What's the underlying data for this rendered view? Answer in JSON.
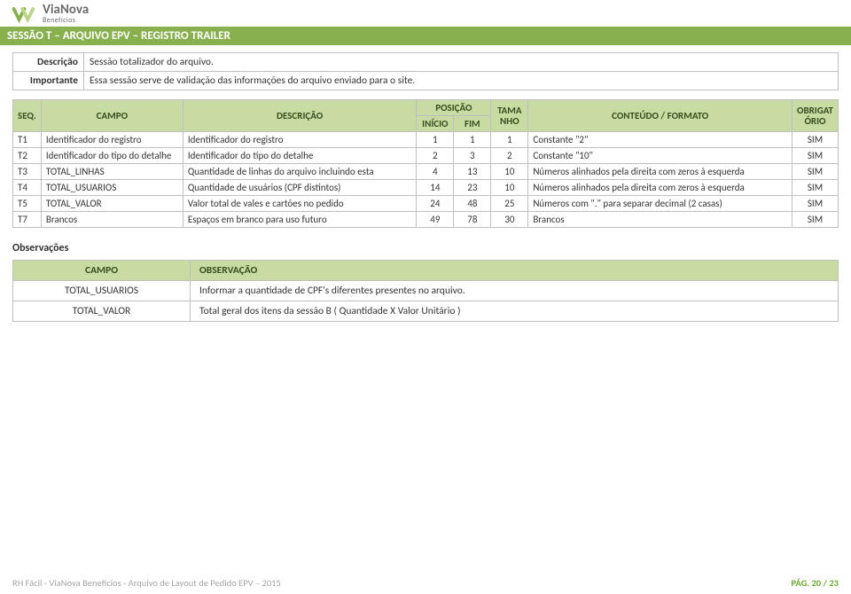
{
  "logo": {
    "name": "ViaNova",
    "sub": "Benefícios"
  },
  "session_title": "SESSÃO T – ARQUIVO EPV – REGISTRO TRAILER",
  "meta": {
    "rows": [
      {
        "label": "Descrição",
        "value": "Sessão totalizador do arquivo."
      },
      {
        "label": "Importante",
        "value": "Essa sessão serve de validação das informações do arquivo enviado para o site."
      }
    ]
  },
  "table": {
    "headers": {
      "seq": "SEQ.",
      "campo": "CAMPO",
      "descricao": "DESCRIÇÃO",
      "posicao": "POSIÇÃO",
      "inicio": "INÍCIO",
      "fim": "FIM",
      "tamanho": "TAMANHO",
      "tamanho_short": "TAMA NHO",
      "conteudo": "CONTEÚDO / FORMATO",
      "obrigat": "OBRIGAT ÓRIO"
    },
    "rows": [
      {
        "seq": "T1",
        "campo": "Identificador do registro",
        "desc": "Identificador do registro",
        "inicio": "1",
        "fim": "1",
        "tam": "1",
        "conteudo": "Constante \"2\"",
        "obrig": "SIM"
      },
      {
        "seq": "T2",
        "campo": "Identificador do tipo do detalhe",
        "desc": "Identificador do tipo do detalhe",
        "inicio": "2",
        "fim": "3",
        "tam": "2",
        "conteudo": "Constante \"10\"",
        "obrig": "SIM"
      },
      {
        "seq": "T3",
        "campo": "TOTAL_LINHAS",
        "desc": "Quantidade de linhas do arquivo incluindo esta",
        "inicio": "4",
        "fim": "13",
        "tam": "10",
        "conteudo": "Números alinhados pela direita com zeros à esquerda",
        "obrig": "SIM"
      },
      {
        "seq": "T4",
        "campo": "TOTAL_USUARIOS",
        "desc": "Quantidade de usuários (CPF distintos)",
        "inicio": "14",
        "fim": "23",
        "tam": "10",
        "conteudo": "Números alinhados pela direita com zeros à esquerda",
        "obrig": "SIM"
      },
      {
        "seq": "T5",
        "campo": "TOTAL_VALOR",
        "desc": "Valor total de vales e cartões no pedido",
        "inicio": "24",
        "fim": "48",
        "tam": "25",
        "conteudo": "Números com \".\" para separar decimal (2 casas)",
        "obrig": "SIM"
      },
      {
        "seq": "T7",
        "campo": "Brancos",
        "desc": "Espaços em branco para uso futuro",
        "inicio": "49",
        "fim": "78",
        "tam": "30",
        "conteudo": "Brancos",
        "obrig": "SIM"
      }
    ]
  },
  "obs": {
    "heading": "Observações",
    "headers": {
      "campo": "CAMPO",
      "observacao": "OBSERVAÇÃO"
    },
    "rows": [
      {
        "campo": "TOTAL_USUARIOS",
        "obs": "Informar a quantidade de CPF's diferentes presentes no arquivo."
      },
      {
        "campo": "TOTAL_VALOR",
        "obs": "Total geral dos itens da sessão B ( Quantidade X Valor Unitário )"
      }
    ]
  },
  "footer": {
    "left": "RH Fácil - ViaNova Benefícios - Arquivo de Layout de Pedido  EPV – 2015",
    "right_label": "PÁG.",
    "right_value": "20 / 23"
  },
  "colors": {
    "brand_green": "#88b04e",
    "header_fill": "#c7dba3",
    "header_text": "#3a4d21",
    "border": "#bfbfbf",
    "footer_gray": "#a6a6a6"
  }
}
